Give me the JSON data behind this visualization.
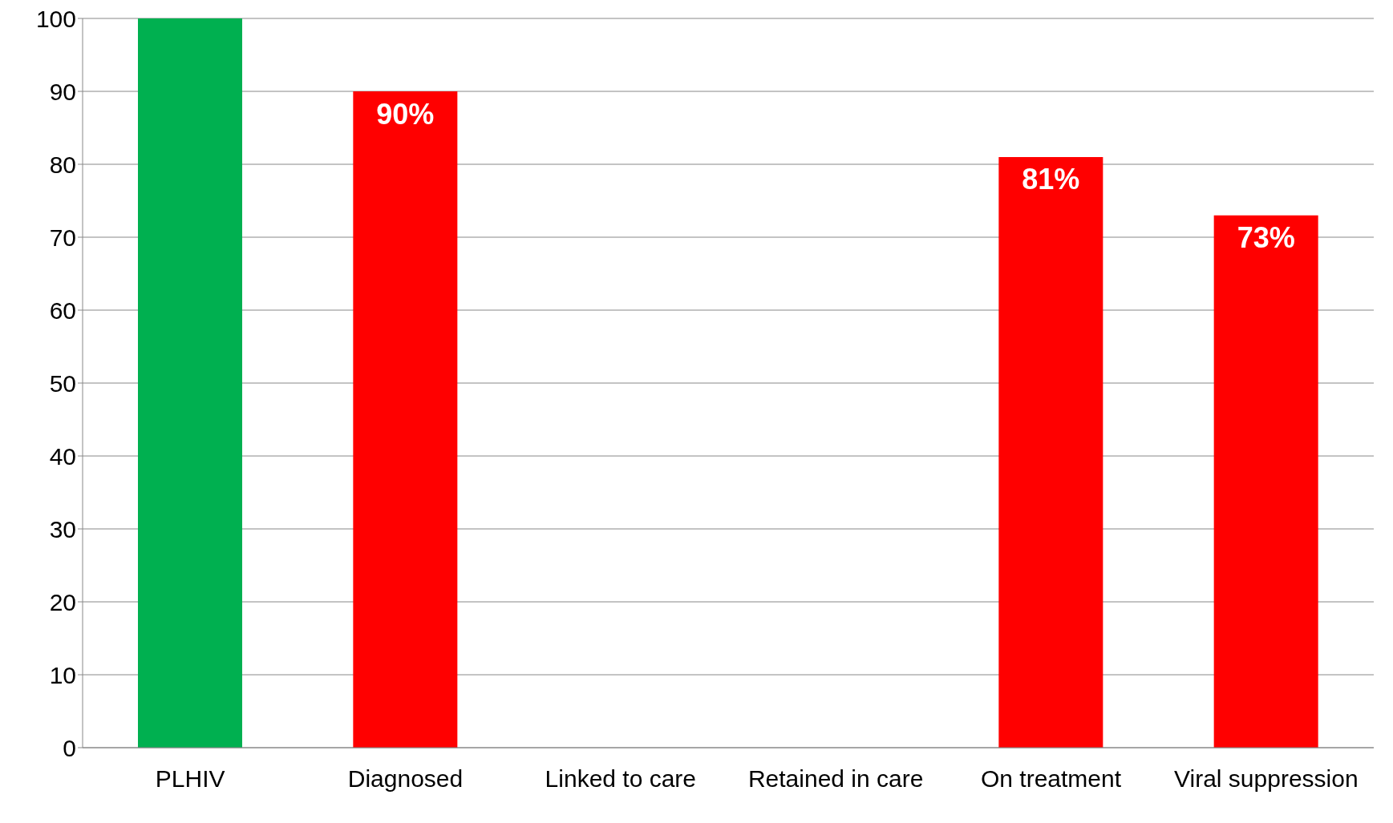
{
  "chart_data": {
    "type": "bar",
    "categories": [
      "PLHIV",
      "Diagnosed",
      "Linked to care",
      "Retained in care",
      "On treatment",
      "Viral suppression"
    ],
    "values": [
      100,
      90,
      null,
      null,
      81,
      73
    ],
    "colors": [
      "#00b050",
      "#ff0000",
      "#ff0000",
      "#ff0000",
      "#ff0000",
      "#ff0000"
    ],
    "value_labels": [
      null,
      "90%",
      null,
      null,
      "81%",
      "73%"
    ],
    "ylim": [
      0,
      100
    ],
    "yticks": [
      0,
      10,
      20,
      30,
      40,
      50,
      60,
      70,
      80,
      90,
      100
    ],
    "grid": "y"
  }
}
